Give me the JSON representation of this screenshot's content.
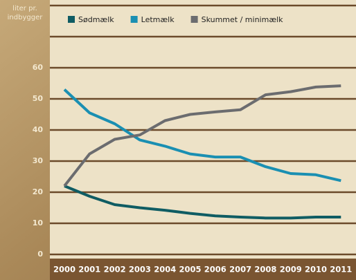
{
  "chart_data": {
    "type": "line",
    "y_label": "liter pr. indbygger",
    "categories": [
      "2000",
      "2001",
      "2002",
      "2003",
      "2004",
      "2005",
      "2006",
      "2007",
      "2008",
      "2009",
      "2010",
      "2011"
    ],
    "series": [
      {
        "name": "Sødmælk",
        "color": "#0f5c63",
        "values": [
          22,
          18.7,
          16,
          15,
          14.2,
          13.2,
          12.4,
          12,
          11.7,
          11.7,
          12,
          12
        ]
      },
      {
        "name": "Letmælk",
        "color": "#1a8fb2",
        "values": [
          53,
          45.5,
          42,
          36.8,
          34.8,
          32.3,
          31.3,
          31.3,
          28.2,
          26,
          25.6,
          23.7
        ]
      },
      {
        "name": "Skummet / minimælk",
        "color": "#6b6c6f",
        "values": [
          22,
          32.3,
          37,
          38.4,
          43,
          45,
          45.8,
          46.5,
          51.3,
          52.3,
          53.8,
          54.2
        ]
      }
    ],
    "ylim": [
      0,
      80
    ],
    "yticks": [
      0,
      10,
      20,
      30,
      40,
      50,
      60
    ],
    "grid": true
  }
}
